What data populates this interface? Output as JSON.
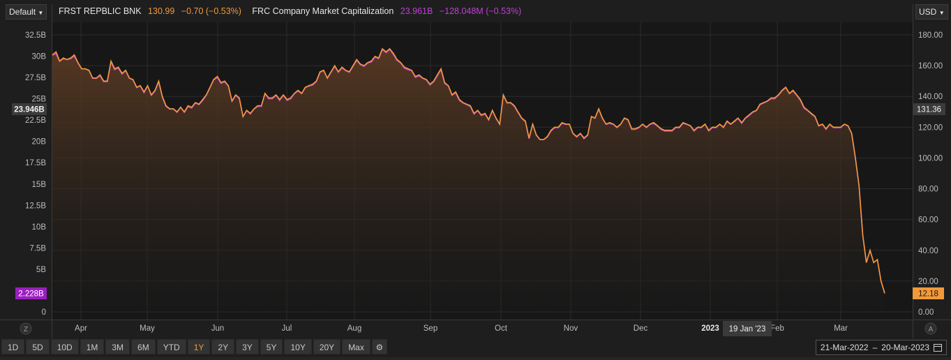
{
  "header": {
    "layout_dropdown": "Default",
    "currency_dropdown": "USD",
    "security_name": "FRST REPBLIC BNK",
    "price": "130.99",
    "price_change": "−0.70 (−0.53%)",
    "mcap_label": "FRC Company Market Capitalization",
    "mcap_value": "23.961B",
    "mcap_change": "−128.048M (−0.53%)"
  },
  "colors": {
    "price_line": "#f2993a",
    "mcap_line": "#c03fd8",
    "background": "#1e1e1e",
    "area_fill_top": "#5a3a22"
  },
  "chart_data": {
    "type": "line",
    "x_ticks": [
      "Apr",
      "May",
      "Jun",
      "Jul",
      "Aug",
      "Sep",
      "Oct",
      "Nov",
      "Dec",
      "2023",
      "Feb",
      "Mar"
    ],
    "left_axis": {
      "label": "",
      "ticks": [
        "32.5B",
        "30B",
        "27.5B",
        "25B",
        "22.5B",
        "20B",
        "17.5B",
        "15B",
        "12.5B",
        "10B",
        "7.5B",
        "5B",
        "2.5B",
        "0"
      ],
      "range": [
        0,
        32.5
      ],
      "current_label": "23.946B",
      "min_label": "2.228B"
    },
    "right_axis": {
      "label": "",
      "ticks": [
        "180.00",
        "160.00",
        "140.00",
        "120.00",
        "100.00",
        "80.00",
        "60.00",
        "40.00",
        "20.00",
        "0.00"
      ],
      "range": [
        0,
        180
      ],
      "current_label": "131.36",
      "last_label": "12.18"
    },
    "crosshair_date": "19 Jan '23",
    "grid": true,
    "left_corner": "Z",
    "right_corner": "A",
    "series": [
      {
        "name": "FRST REPBLIC BNK",
        "axis": "right",
        "values": [
          167,
          169,
          163,
          165,
          164,
          165,
          167,
          162,
          158,
          158,
          157,
          152,
          152,
          154,
          150,
          150,
          163,
          158,
          159,
          155,
          157,
          152,
          151,
          146,
          147,
          143,
          147,
          141,
          144,
          150,
          140,
          134,
          132,
          132,
          130,
          133,
          130,
          134,
          133,
          136,
          135,
          138,
          141,
          146,
          151,
          153,
          149,
          150,
          147,
          137,
          141,
          139,
          127,
          131,
          129,
          132,
          134,
          134,
          142,
          139,
          139,
          141,
          138,
          141,
          138,
          139,
          142,
          144,
          142,
          146,
          147,
          148,
          150,
          156,
          157,
          152,
          156,
          160,
          156,
          159,
          157,
          156,
          160,
          164,
          161,
          160,
          162,
          163,
          166,
          165,
          171,
          169,
          171,
          168,
          164,
          162,
          159,
          158,
          157,
          153,
          154,
          152,
          151,
          148,
          150,
          154,
          158,
          149,
          147,
          141,
          143,
          138,
          136,
          135,
          134,
          129,
          131,
          128,
          129,
          125,
          131,
          126,
          122,
          141,
          136,
          136,
          134,
          130,
          126,
          124,
          113,
          122,
          115,
          112,
          112,
          114,
          118,
          120,
          120,
          123,
          122,
          122,
          116,
          114,
          116,
          113,
          115,
          127,
          126,
          132,
          126,
          122,
          123,
          122,
          120,
          122,
          126,
          125,
          119,
          119,
          120,
          122,
          120,
          122,
          123,
          121,
          119,
          118,
          118,
          118,
          120,
          120,
          123,
          122,
          121,
          118,
          120,
          120,
          122,
          118,
          120,
          120,
          122,
          120,
          124,
          122,
          124,
          126,
          123,
          126,
          128,
          130,
          131,
          135,
          136,
          137,
          139,
          139,
          141,
          144,
          146,
          142,
          144,
          141,
          138,
          133,
          131,
          129,
          127,
          121,
          122,
          119,
          122,
          120,
          120,
          120,
          122,
          121,
          116,
          100,
          82,
          50,
          32,
          40,
          32,
          34,
          20,
          12
        ]
      },
      {
        "name": "FRC Company Market Capitalization",
        "axis": "left",
        "values": [
          30.1,
          30.3,
          29.4,
          29.7,
          29.6,
          29.7,
          30.0,
          29.2,
          28.5,
          28.5,
          28.3,
          27.4,
          27.4,
          27.7,
          27.0,
          27.0,
          29.3,
          28.4,
          28.6,
          27.9,
          28.3,
          27.4,
          27.2,
          26.3,
          26.5,
          25.7,
          26.5,
          25.4,
          25.9,
          27.0,
          25.2,
          24.1,
          23.8,
          23.8,
          23.4,
          24.0,
          23.4,
          24.1,
          23.9,
          24.5,
          24.3,
          24.8,
          25.4,
          26.3,
          27.2,
          27.5,
          26.8,
          27.0,
          26.5,
          24.7,
          25.4,
          25.0,
          22.9,
          23.6,
          23.2,
          23.8,
          24.1,
          24.1,
          25.6,
          25.0,
          25.0,
          25.4,
          24.8,
          25.4,
          24.8,
          25.0,
          25.6,
          25.9,
          25.6,
          26.3,
          26.5,
          26.6,
          27.0,
          28.1,
          28.3,
          27.4,
          28.1,
          28.8,
          28.1,
          28.6,
          28.3,
          28.1,
          28.8,
          29.5,
          29.0,
          28.8,
          29.2,
          29.3,
          29.9,
          29.7,
          30.8,
          30.4,
          30.8,
          30.2,
          29.5,
          29.2,
          28.6,
          28.4,
          28.3,
          27.5,
          27.7,
          27.4,
          27.2,
          26.6,
          27.0,
          27.7,
          28.4,
          26.8,
          26.5,
          25.4,
          25.7,
          24.8,
          24.5,
          24.3,
          24.1,
          23.2,
          23.6,
          23.0,
          23.2,
          22.5,
          23.6,
          22.7,
          22.0,
          25.4,
          24.5,
          24.5,
          24.1,
          23.4,
          22.7,
          22.3,
          20.3,
          22.0,
          20.7,
          20.2,
          20.2,
          20.5,
          21.2,
          21.6,
          21.6,
          22.1,
          22.0,
          22.0,
          20.9,
          20.5,
          20.9,
          20.3,
          20.7,
          22.9,
          22.7,
          23.8,
          22.7,
          22.0,
          22.1,
          22.0,
          21.6,
          22.0,
          22.7,
          22.5,
          21.4,
          21.4,
          21.6,
          22.0,
          21.6,
          22.0,
          22.1,
          21.8,
          21.4,
          21.2,
          21.2,
          21.2,
          21.6,
          21.6,
          22.1,
          22.0,
          21.8,
          21.2,
          21.6,
          21.6,
          22.0,
          21.2,
          21.6,
          21.6,
          22.0,
          21.6,
          22.3,
          22.0,
          22.3,
          22.7,
          22.1,
          22.7,
          23.0,
          23.4,
          23.6,
          24.3,
          24.5,
          24.7,
          25.0,
          25.0,
          25.4,
          25.9,
          26.3,
          25.6,
          25.9,
          25.4,
          24.8,
          23.9,
          23.6,
          23.2,
          22.9,
          21.8,
          22.0,
          21.4,
          22.0,
          21.6,
          21.6,
          21.6,
          22.0,
          21.8,
          20.9,
          18.0,
          14.8,
          9.0,
          5.8,
          7.2,
          5.8,
          6.1,
          3.6,
          2.2
        ]
      }
    ]
  },
  "range_buttons": [
    "1D",
    "5D",
    "10D",
    "1M",
    "3M",
    "6M",
    "YTD",
    "1Y",
    "2Y",
    "3Y",
    "5Y",
    "10Y",
    "20Y",
    "Max"
  ],
  "active_range": "1Y",
  "date_range": {
    "start": "21-Mar-2022",
    "sep": "–",
    "end": "20-Mar-2023"
  }
}
